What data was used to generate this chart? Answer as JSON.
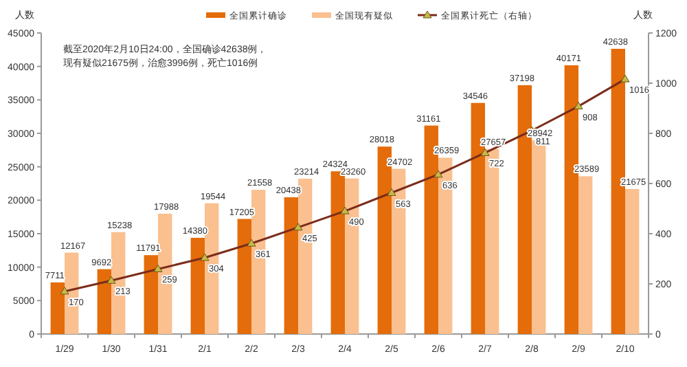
{
  "chart_data": {
    "type": "bar",
    "ylabel": "人数",
    "y2label": "人数",
    "annotations": [
      "截至2020年2月10日24:00，全国确诊42638例，现有疑似21675例，治愈3996例，死亡1016例"
    ],
    "categories": [
      "1/29",
      "1/30",
      "1/31",
      "2/1",
      "2/2",
      "2/3",
      "2/4",
      "2/5",
      "2/6",
      "2/7",
      "2/8",
      "2/9",
      "2/10"
    ],
    "series": [
      {
        "name": "全国累计确诊",
        "color": "#e46c0a",
        "values": [
          7711,
          9692,
          11791,
          14380,
          17205,
          20438,
          24324,
          28018,
          31161,
          34546,
          37198,
          40171,
          42638
        ]
      },
      {
        "name": "全国现有疑似",
        "type": "bar",
        "color": "#fac090",
        "values": [
          12167,
          15238,
          17988,
          19544,
          21558,
          23214,
          23260,
          24702,
          26359,
          27657,
          28942,
          23589,
          21675
        ]
      },
      {
        "name": "全国累计死亡（右轴）",
        "type": "line",
        "axis": "y2",
        "color": "#7b2c1a",
        "marker": "triangle",
        "values": [
          170,
          213,
          259,
          304,
          361,
          425,
          490,
          563,
          636,
          722,
          811,
          908,
          1016
        ]
      }
    ],
    "ylim": [
      0,
      45000
    ],
    "yticks": [
      0,
      5000,
      10000,
      15000,
      20000,
      25000,
      30000,
      35000,
      40000,
      45000
    ],
    "y2lim": [
      0,
      1200
    ],
    "y2ticks": [
      0,
      200,
      400,
      600,
      800,
      1000,
      1200
    ],
    "grid": false,
    "legend": "top",
    "data_labels": true
  }
}
